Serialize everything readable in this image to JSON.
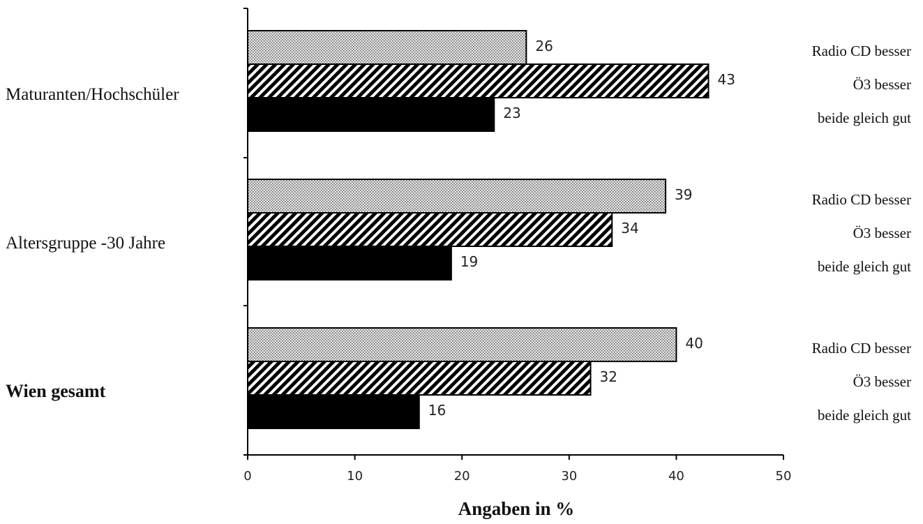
{
  "chart_data": {
    "type": "bar",
    "orientation": "horizontal",
    "xlabel": "Angaben in %",
    "ylabel": "",
    "xlim": [
      0,
      50
    ],
    "xticks": [
      0,
      10,
      20,
      30,
      40,
      50
    ],
    "grid": false,
    "categories": [
      {
        "name": "Maturanten/Hochschüler",
        "bold": false,
        "series": [
          {
            "label": "Radio CD besser",
            "value": 26,
            "pattern": "dots"
          },
          {
            "label": "Ö3 besser",
            "value": 43,
            "pattern": "hatch"
          },
          {
            "label": "beide gleich gut",
            "value": 23,
            "pattern": "solid"
          }
        ]
      },
      {
        "name": "Altersgruppe -30 Jahre",
        "bold": false,
        "series": [
          {
            "label": "Radio CD besser",
            "value": 39,
            "pattern": "dots"
          },
          {
            "label": "Ö3 besser",
            "value": 34,
            "pattern": "hatch"
          },
          {
            "label": "beide gleich gut",
            "value": 19,
            "pattern": "solid"
          }
        ]
      },
      {
        "name": "Wien gesamt",
        "bold": true,
        "series": [
          {
            "label": "Radio CD besser",
            "value": 40,
            "pattern": "dots"
          },
          {
            "label": "Ö3 besser",
            "value": 32,
            "pattern": "hatch"
          },
          {
            "label": "beide gleich gut",
            "value": 16,
            "pattern": "solid"
          }
        ]
      }
    ],
    "colors": {
      "solid": "#000000",
      "dots": "#c8c8c8",
      "hatch": "#000000"
    }
  }
}
